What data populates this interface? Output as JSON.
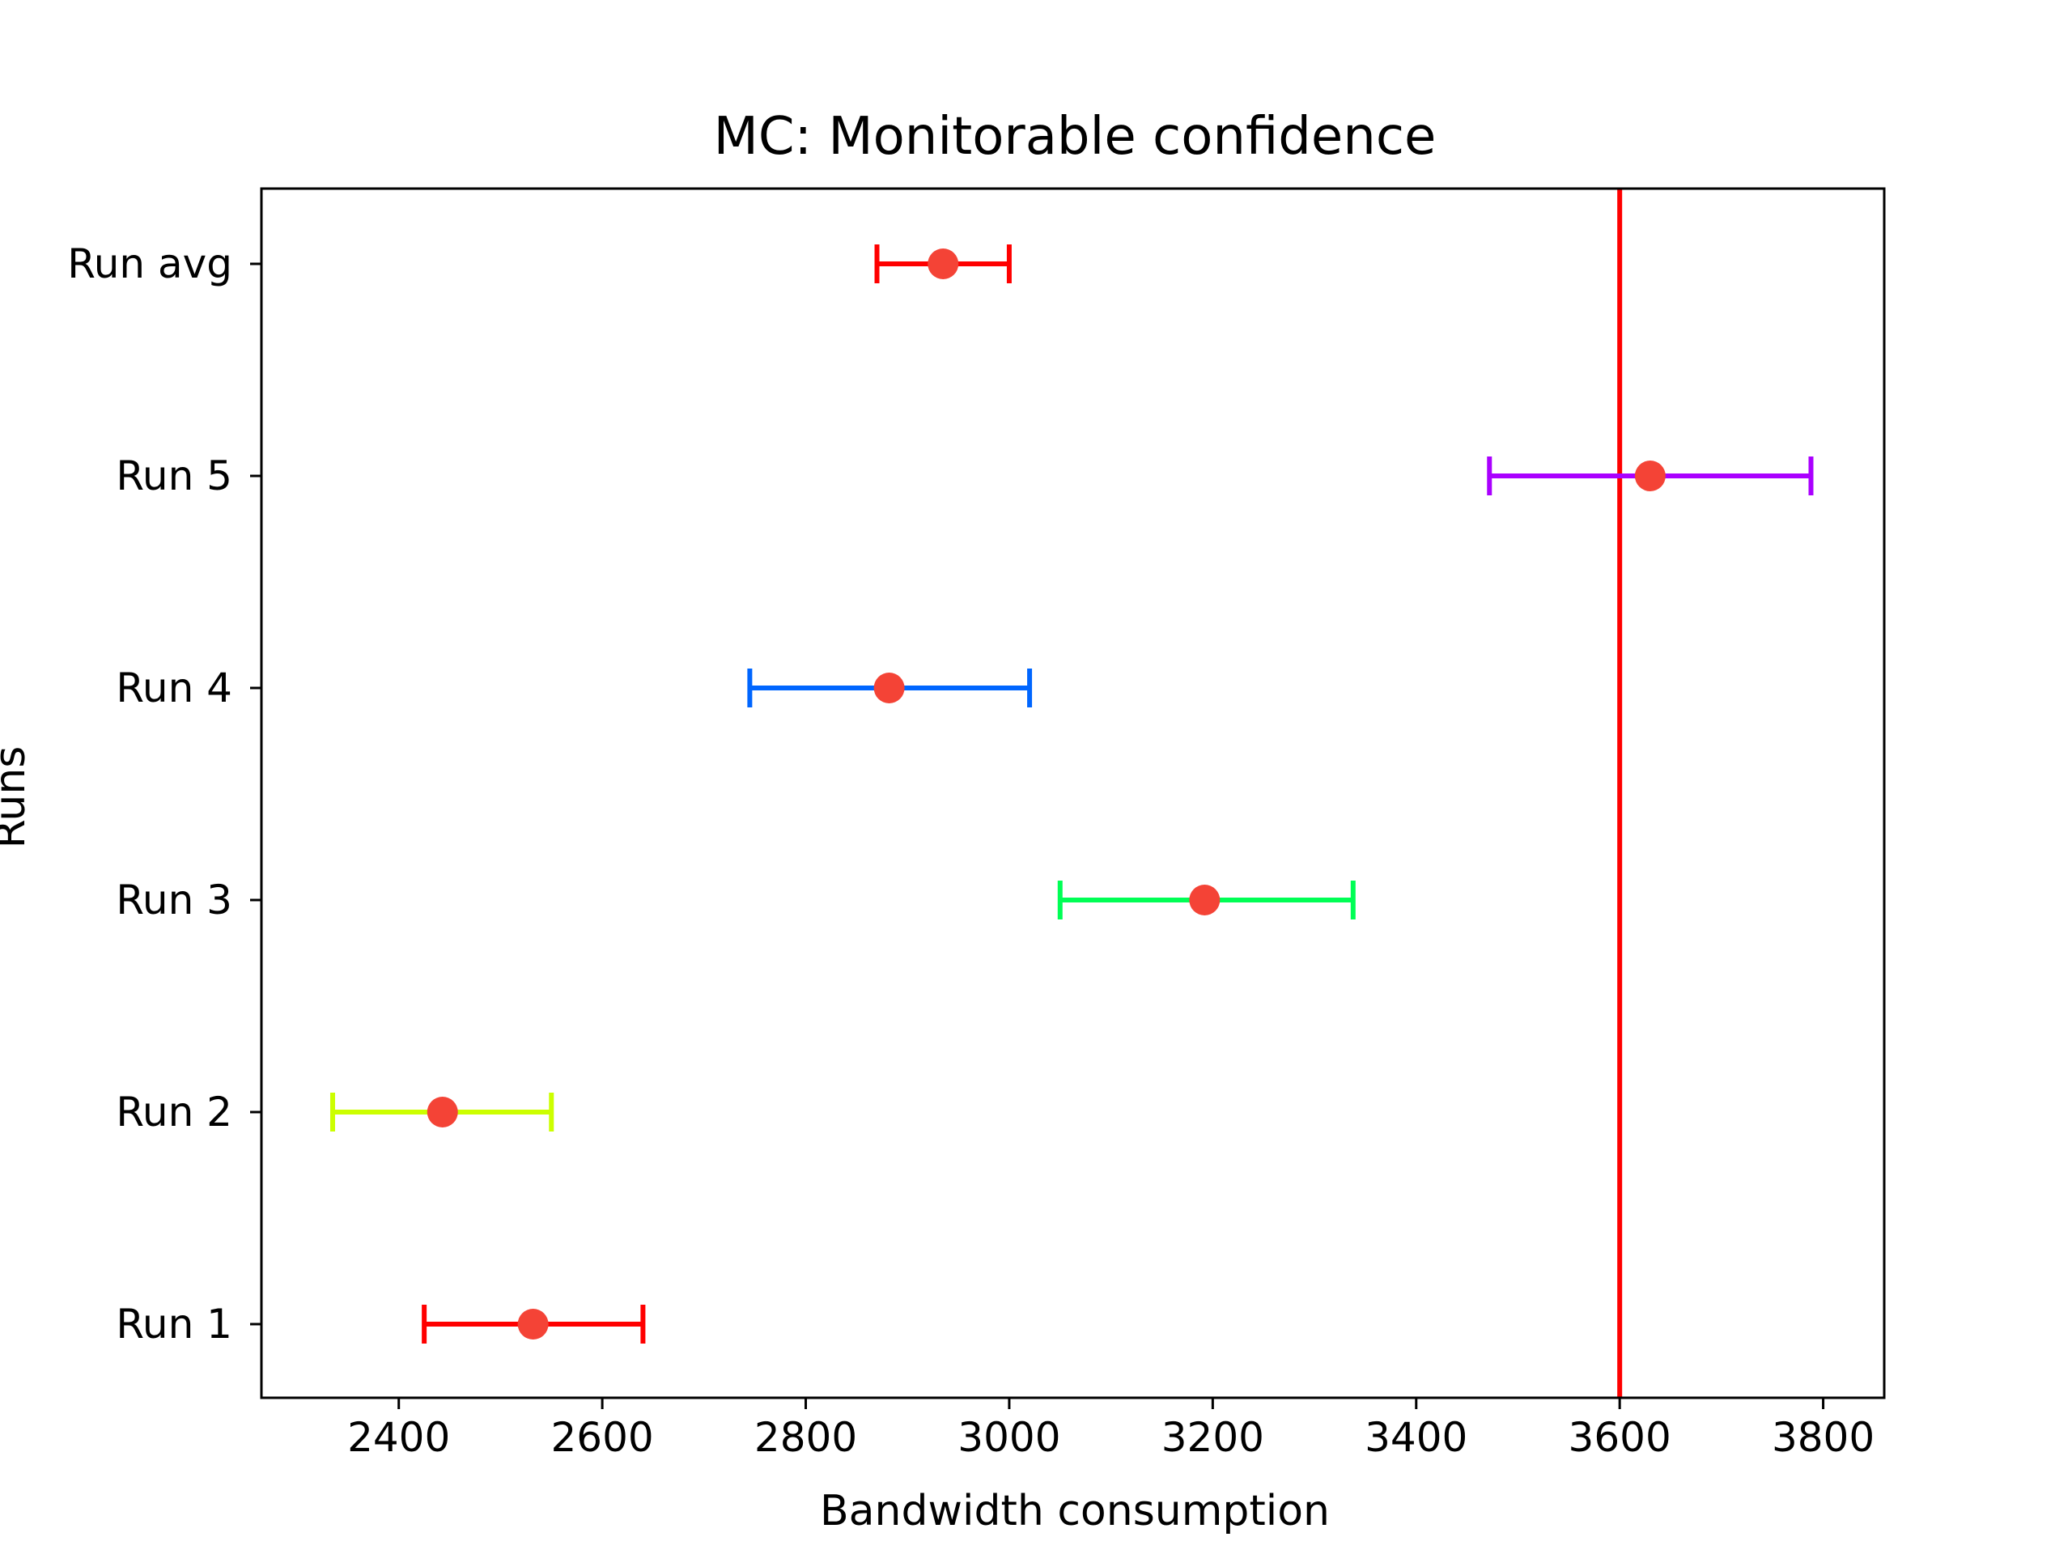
{
  "chart_data": {
    "type": "scatter",
    "title": "MC: Monitorable confidence",
    "xlabel": "Bandwidth consumption",
    "ylabel": "Runs",
    "xlim": [
      2265,
      3860
    ],
    "xticks": [
      2400,
      2600,
      2800,
      3000,
      3200,
      3400,
      3600,
      3800
    ],
    "grid": false,
    "marker_color": "#f44336",
    "reference_line": {
      "x": 3600,
      "color": "#ff0000"
    },
    "categories": [
      "Run 1",
      "Run 2",
      "Run 3",
      "Run 4",
      "Run 5",
      "Run avg"
    ],
    "points": [
      {
        "label": "Run 1",
        "value": 2532,
        "low": 2425,
        "high": 2640,
        "color": "#ff0000"
      },
      {
        "label": "Run 2",
        "value": 2443,
        "low": 2335,
        "high": 2550,
        "color": "#ccff00"
      },
      {
        "label": "Run 3",
        "value": 3192,
        "low": 3050,
        "high": 3338,
        "color": "#00ff55"
      },
      {
        "label": "Run 4",
        "value": 2882,
        "low": 2745,
        "high": 3020,
        "color": "#0066ff"
      },
      {
        "label": "Run 5",
        "value": 3630,
        "low": 3472,
        "high": 3788,
        "color": "#aa00ff"
      },
      {
        "label": "Run avg",
        "value": 2935,
        "low": 2870,
        "high": 3000,
        "color": "#ff0000"
      }
    ]
  }
}
